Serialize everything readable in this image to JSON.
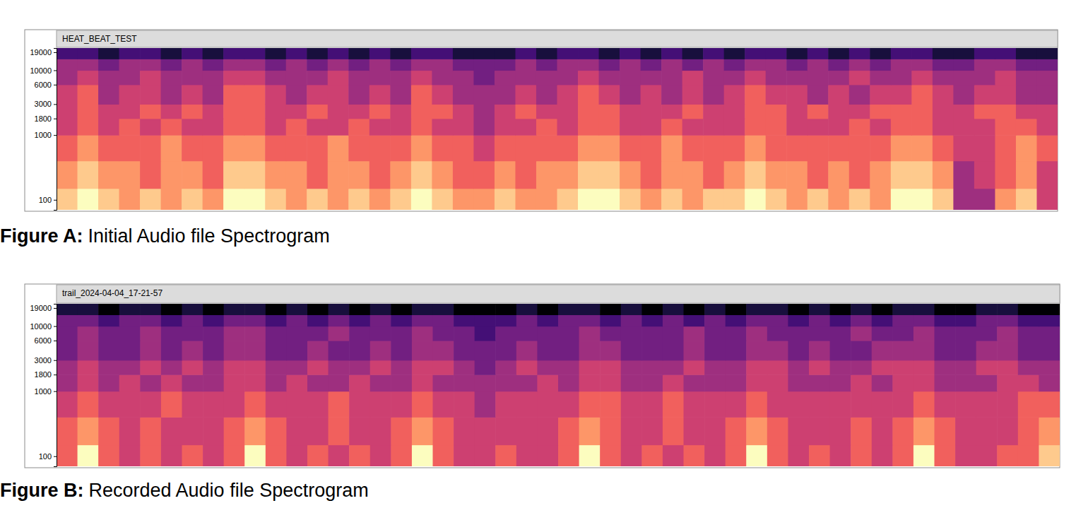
{
  "chart_data": [
    {
      "type": "heatmap",
      "title": "HEAT_BEAT_TEST",
      "caption_label": "Figure A:",
      "caption": "Initial Audio file Spectrogram",
      "log": "y",
      "tick_labels": "y",
      "ylim": [
        70,
        22050
      ],
      "yticks": [
        100,
        1000,
        1800,
        3000,
        6000,
        10000,
        19000
      ],
      "y_bins": [
        70,
        150,
        400,
        1000,
        1800,
        3000,
        6000,
        10000,
        15000,
        22050
      ],
      "cells": [
        [
          8,
          9,
          8,
          7,
          8,
          7,
          8,
          7,
          9,
          9,
          8,
          7,
          8,
          7,
          8,
          7,
          8,
          9,
          8,
          7,
          7,
          8,
          7,
          7,
          8,
          9,
          9,
          8,
          7,
          8,
          7,
          8,
          8,
          9,
          8,
          7,
          8,
          7,
          8,
          7,
          9,
          9,
          8,
          4,
          4,
          7,
          8,
          5
        ],
        [
          7,
          8,
          7,
          7,
          6,
          7,
          7,
          6,
          8,
          8,
          7,
          7,
          6,
          7,
          7,
          6,
          7,
          8,
          7,
          6,
          6,
          7,
          6,
          7,
          7,
          8,
          8,
          7,
          6,
          7,
          7,
          6,
          7,
          8,
          7,
          7,
          6,
          7,
          6,
          7,
          8,
          8,
          7,
          4,
          5,
          6,
          7,
          5
        ],
        [
          6,
          7,
          6,
          6,
          6,
          7,
          6,
          6,
          7,
          7,
          6,
          6,
          6,
          7,
          6,
          6,
          6,
          7,
          6,
          6,
          5,
          6,
          6,
          6,
          6,
          7,
          7,
          6,
          6,
          7,
          6,
          6,
          6,
          7,
          6,
          6,
          6,
          6,
          6,
          6,
          7,
          7,
          6,
          5,
          5,
          6,
          7,
          6
        ],
        [
          5,
          6,
          5,
          6,
          5,
          6,
          5,
          5,
          6,
          6,
          5,
          6,
          5,
          5,
          6,
          5,
          5,
          6,
          5,
          5,
          4,
          5,
          5,
          6,
          5,
          6,
          6,
          5,
          5,
          6,
          5,
          5,
          5,
          6,
          6,
          5,
          5,
          5,
          6,
          5,
          6,
          6,
          5,
          5,
          5,
          6,
          6,
          5
        ],
        [
          5,
          6,
          5,
          5,
          6,
          5,
          6,
          5,
          6,
          6,
          5,
          5,
          6,
          5,
          5,
          6,
          5,
          6,
          6,
          5,
          4,
          5,
          6,
          5,
          5,
          6,
          6,
          5,
          5,
          5,
          6,
          5,
          5,
          6,
          6,
          5,
          6,
          5,
          5,
          6,
          6,
          6,
          5,
          5,
          6,
          6,
          5,
          5
        ],
        [
          5,
          6,
          4,
          5,
          5,
          4,
          5,
          4,
          6,
          6,
          5,
          4,
          5,
          5,
          4,
          5,
          4,
          6,
          5,
          4,
          4,
          4,
          5,
          4,
          5,
          6,
          5,
          4,
          5,
          4,
          5,
          4,
          5,
          6,
          5,
          5,
          4,
          5,
          4,
          5,
          5,
          6,
          5,
          4,
          5,
          5,
          4,
          4
        ],
        [
          4,
          5,
          4,
          4,
          5,
          4,
          4,
          4,
          5,
          5,
          4,
          4,
          4,
          5,
          4,
          4,
          4,
          5,
          4,
          4,
          3,
          4,
          4,
          4,
          4,
          5,
          4,
          4,
          4,
          4,
          5,
          4,
          4,
          5,
          4,
          4,
          4,
          4,
          5,
          4,
          4,
          5,
          4,
          4,
          4,
          5,
          4,
          4
        ],
        [
          4,
          4,
          3,
          4,
          4,
          3,
          4,
          3,
          4,
          4,
          3,
          4,
          3,
          4,
          3,
          4,
          3,
          4,
          4,
          3,
          3,
          3,
          4,
          3,
          4,
          4,
          3,
          4,
          3,
          4,
          3,
          4,
          3,
          4,
          4,
          3,
          4,
          3,
          4,
          3,
          4,
          4,
          3,
          3,
          4,
          4,
          3,
          3
        ],
        [
          2,
          2,
          1,
          2,
          2,
          1,
          2,
          1,
          2,
          2,
          1,
          2,
          1,
          2,
          1,
          2,
          1,
          2,
          2,
          1,
          1,
          1,
          2,
          1,
          2,
          2,
          1,
          2,
          1,
          2,
          1,
          2,
          1,
          2,
          2,
          1,
          2,
          1,
          2,
          1,
          2,
          2,
          1,
          1,
          2,
          2,
          1,
          1
        ]
      ]
    },
    {
      "type": "heatmap",
      "title": "trail_2024-04-04_17-21-57",
      "caption_label": "Figure B:",
      "caption": "Recorded Audio file Spectrogram",
      "log": "y",
      "tick_labels": "y",
      "ylim": [
        70,
        22050
      ],
      "yticks": [
        100,
        1000,
        1800,
        3000,
        6000,
        10000,
        19000
      ],
      "y_bins": [
        70,
        150,
        400,
        1000,
        1800,
        3000,
        6000,
        10000,
        15000,
        22050
      ],
      "cells": [
        [
          6,
          9,
          6,
          5,
          6,
          5,
          6,
          5,
          6,
          9,
          6,
          5,
          6,
          5,
          6,
          5,
          6,
          9,
          6,
          5,
          5,
          6,
          5,
          5,
          6,
          9,
          6,
          5,
          6,
          5,
          6,
          5,
          6,
          9,
          6,
          5,
          6,
          5,
          6,
          5,
          6,
          9,
          6,
          5,
          5,
          6,
          6,
          8
        ],
        [
          6,
          7,
          6,
          5,
          6,
          5,
          5,
          5,
          6,
          7,
          6,
          5,
          5,
          6,
          5,
          5,
          6,
          7,
          6,
          5,
          5,
          5,
          5,
          5,
          6,
          7,
          6,
          5,
          5,
          6,
          5,
          5,
          6,
          7,
          6,
          5,
          5,
          5,
          6,
          5,
          6,
          7,
          6,
          5,
          5,
          5,
          6,
          7
        ],
        [
          5,
          6,
          5,
          5,
          5,
          6,
          5,
          5,
          5,
          6,
          5,
          5,
          5,
          6,
          5,
          5,
          5,
          6,
          5,
          5,
          4,
          5,
          5,
          5,
          5,
          6,
          6,
          5,
          5,
          6,
          5,
          5,
          5,
          6,
          5,
          5,
          5,
          5,
          5,
          5,
          5,
          6,
          5,
          5,
          5,
          5,
          6,
          6
        ],
        [
          4,
          5,
          4,
          5,
          4,
          5,
          4,
          4,
          5,
          5,
          4,
          5,
          4,
          4,
          5,
          4,
          4,
          5,
          4,
          4,
          4,
          4,
          4,
          5,
          4,
          5,
          5,
          4,
          4,
          5,
          4,
          4,
          4,
          5,
          5,
          4,
          4,
          4,
          5,
          4,
          5,
          5,
          4,
          4,
          4,
          5,
          5,
          4
        ],
        [
          4,
          5,
          4,
          4,
          5,
          4,
          5,
          4,
          5,
          5,
          4,
          4,
          5,
          4,
          4,
          5,
          4,
          5,
          5,
          4,
          3,
          4,
          5,
          4,
          4,
          5,
          5,
          4,
          4,
          4,
          5,
          4,
          4,
          5,
          5,
          4,
          5,
          4,
          4,
          5,
          5,
          5,
          4,
          4,
          5,
          5,
          4,
          4
        ],
        [
          3,
          4,
          3,
          3,
          4,
          3,
          4,
          3,
          4,
          4,
          3,
          3,
          4,
          3,
          3,
          4,
          3,
          4,
          4,
          3,
          3,
          3,
          4,
          3,
          3,
          4,
          4,
          3,
          3,
          3,
          4,
          3,
          3,
          4,
          4,
          3,
          4,
          3,
          3,
          4,
          4,
          4,
          3,
          3,
          4,
          4,
          3,
          3
        ],
        [
          3,
          4,
          3,
          3,
          4,
          3,
          3,
          3,
          4,
          4,
          3,
          3,
          3,
          4,
          3,
          3,
          3,
          4,
          3,
          3,
          2,
          3,
          3,
          3,
          3,
          4,
          3,
          3,
          3,
          3,
          4,
          3,
          3,
          4,
          3,
          3,
          3,
          3,
          4,
          3,
          3,
          4,
          3,
          3,
          3,
          4,
          3,
          3
        ],
        [
          3,
          3,
          2,
          3,
          3,
          2,
          3,
          2,
          3,
          3,
          2,
          3,
          2,
          3,
          2,
          3,
          2,
          3,
          3,
          2,
          2,
          2,
          3,
          2,
          3,
          3,
          2,
          3,
          2,
          3,
          2,
          3,
          2,
          3,
          3,
          2,
          3,
          2,
          3,
          2,
          3,
          3,
          2,
          2,
          3,
          3,
          2,
          2
        ],
        [
          1,
          1,
          0,
          1,
          1,
          0,
          1,
          0,
          1,
          1,
          0,
          1,
          0,
          1,
          0,
          1,
          0,
          1,
          1,
          0,
          0,
          0,
          1,
          0,
          1,
          1,
          0,
          1,
          0,
          1,
          0,
          1,
          0,
          1,
          1,
          0,
          1,
          0,
          1,
          0,
          1,
          1,
          0,
          0,
          1,
          1,
          0,
          0
        ]
      ]
    }
  ]
}
